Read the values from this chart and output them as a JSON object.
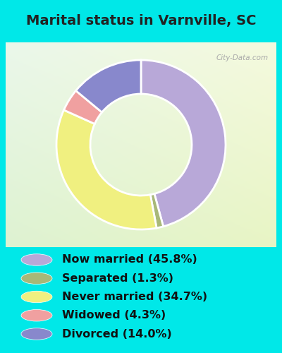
{
  "title": "Marital status in Varnville, SC",
  "slices": [
    45.8,
    1.3,
    34.7,
    4.3,
    14.0
  ],
  "colors": [
    "#b8a8d8",
    "#a8b878",
    "#f0f080",
    "#f0a0a0",
    "#8888cc"
  ],
  "labels": [
    "Now married (45.8%)",
    "Separated (1.3%)",
    "Never married (34.7%)",
    "Widowed (4.3%)",
    "Divorced (14.0%)"
  ],
  "plot_order": [
    0,
    1,
    2,
    3,
    4
  ],
  "bg_outer": "#00e8e8",
  "title_color": "#222222",
  "title_fontsize": 14,
  "legend_fontsize": 11.5,
  "donut_width": 0.4,
  "startangle": 90,
  "watermark": "City-Data.com"
}
